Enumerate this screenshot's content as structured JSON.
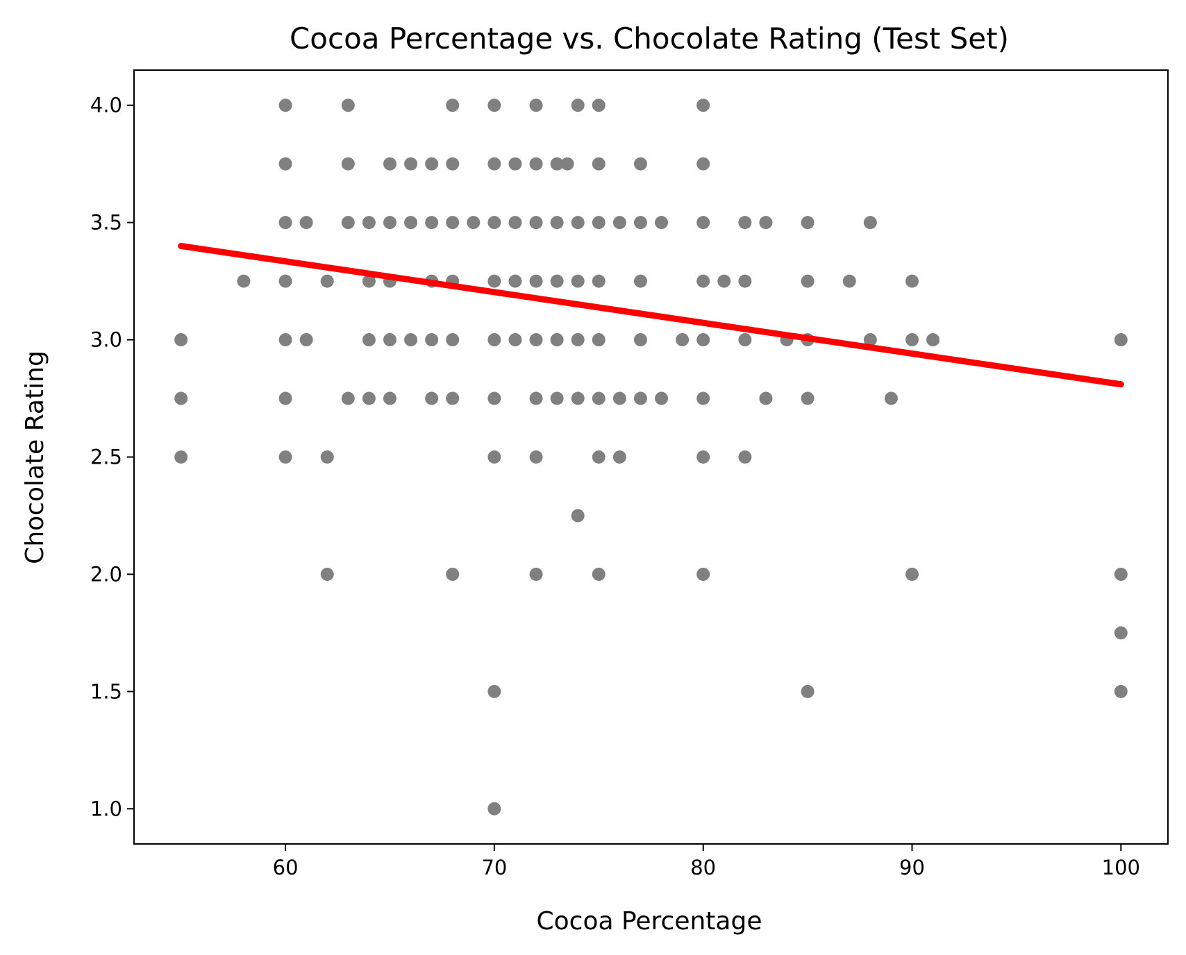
{
  "chart_data": {
    "type": "scatter",
    "title": "Cocoa Percentage vs. Chocolate Rating (Test Set)",
    "xlabel": "Cocoa Percentage",
    "ylabel": "Chocolate Rating",
    "xlim": [
      52.75,
      102.25
    ],
    "ylim": [
      0.85,
      4.15
    ],
    "xticks": [
      60,
      70,
      80,
      90,
      100
    ],
    "xtick_labels": [
      "60",
      "70",
      "80",
      "90",
      "100"
    ],
    "yticks": [
      1.0,
      1.5,
      2.0,
      2.5,
      3.0,
      3.5,
      4.0
    ],
    "ytick_labels": [
      "1.0",
      "1.5",
      "2.0",
      "2.5",
      "3.0",
      "3.5",
      "4.0"
    ],
    "grid": false,
    "legend": "none",
    "colors": {
      "points": "#808080",
      "line": "#ff0000"
    },
    "series": [
      {
        "type": "scatter",
        "points": [
          [
            55,
            3.0
          ],
          [
            55,
            2.75
          ],
          [
            55,
            2.5
          ],
          [
            58,
            3.25
          ],
          [
            60,
            4.0
          ],
          [
            60,
            3.75
          ],
          [
            60,
            3.5
          ],
          [
            60,
            3.25
          ],
          [
            60,
            3.0
          ],
          [
            60,
            2.75
          ],
          [
            60,
            2.5
          ],
          [
            61,
            3.5
          ],
          [
            61,
            3.0
          ],
          [
            62,
            3.25
          ],
          [
            62,
            2.5
          ],
          [
            62,
            2.0
          ],
          [
            63,
            4.0
          ],
          [
            63,
            3.75
          ],
          [
            63,
            3.5
          ],
          [
            63,
            2.75
          ],
          [
            64,
            3.5
          ],
          [
            64,
            3.25
          ],
          [
            64,
            3.0
          ],
          [
            64,
            2.75
          ],
          [
            65,
            3.75
          ],
          [
            65,
            3.5
          ],
          [
            65,
            3.25
          ],
          [
            65,
            3.0
          ],
          [
            65,
            2.75
          ],
          [
            66,
            3.75
          ],
          [
            66,
            3.5
          ],
          [
            66,
            3.0
          ],
          [
            67,
            3.75
          ],
          [
            67,
            3.5
          ],
          [
            67,
            3.25
          ],
          [
            67,
            3.0
          ],
          [
            67,
            2.75
          ],
          [
            68,
            4.0
          ],
          [
            68,
            3.75
          ],
          [
            68,
            3.5
          ],
          [
            68,
            3.25
          ],
          [
            68,
            3.0
          ],
          [
            68,
            2.75
          ],
          [
            68,
            2.0
          ],
          [
            69,
            3.5
          ],
          [
            70,
            4.0
          ],
          [
            70,
            3.75
          ],
          [
            70,
            3.5
          ],
          [
            70,
            3.25
          ],
          [
            70,
            3.0
          ],
          [
            70,
            2.75
          ],
          [
            70,
            2.5
          ],
          [
            70,
            1.5
          ],
          [
            70,
            1.0
          ],
          [
            71,
            3.75
          ],
          [
            71,
            3.5
          ],
          [
            71,
            3.25
          ],
          [
            71,
            3.0
          ],
          [
            72,
            4.0
          ],
          [
            72,
            3.75
          ],
          [
            72,
            3.5
          ],
          [
            72,
            3.25
          ],
          [
            72,
            3.0
          ],
          [
            72,
            2.75
          ],
          [
            72,
            2.5
          ],
          [
            72,
            2.0
          ],
          [
            73,
            3.75
          ],
          [
            73,
            3.5
          ],
          [
            73,
            3.25
          ],
          [
            73,
            3.0
          ],
          [
            73,
            2.75
          ],
          [
            73.5,
            3.75
          ],
          [
            74,
            4.0
          ],
          [
            74,
            3.5
          ],
          [
            74,
            3.25
          ],
          [
            74,
            3.0
          ],
          [
            74,
            2.75
          ],
          [
            74,
            2.25
          ],
          [
            75,
            4.0
          ],
          [
            75,
            3.75
          ],
          [
            75,
            3.5
          ],
          [
            75,
            3.25
          ],
          [
            75,
            3.0
          ],
          [
            75,
            2.75
          ],
          [
            75,
            2.5
          ],
          [
            75,
            2.0
          ],
          [
            76,
            3.5
          ],
          [
            76,
            2.75
          ],
          [
            76,
            2.5
          ],
          [
            77,
            3.75
          ],
          [
            77,
            3.5
          ],
          [
            77,
            3.25
          ],
          [
            77,
            3.0
          ],
          [
            77,
            2.75
          ],
          [
            78,
            3.5
          ],
          [
            78,
            2.75
          ],
          [
            79,
            3.0
          ],
          [
            80,
            4.0
          ],
          [
            80,
            3.75
          ],
          [
            80,
            3.5
          ],
          [
            80,
            3.25
          ],
          [
            80,
            3.0
          ],
          [
            80,
            2.75
          ],
          [
            80,
            2.5
          ],
          [
            80,
            2.0
          ],
          [
            81,
            3.25
          ],
          [
            82,
            3.5
          ],
          [
            82,
            3.25
          ],
          [
            82,
            3.0
          ],
          [
            82,
            2.5
          ],
          [
            83,
            3.5
          ],
          [
            83,
            2.75
          ],
          [
            84,
            3.0
          ],
          [
            85,
            3.5
          ],
          [
            85,
            3.25
          ],
          [
            85,
            3.0
          ],
          [
            85,
            2.75
          ],
          [
            85,
            1.5
          ],
          [
            87,
            3.25
          ],
          [
            88,
            3.5
          ],
          [
            88,
            3.0
          ],
          [
            89,
            2.75
          ],
          [
            90,
            3.25
          ],
          [
            90,
            3.0
          ],
          [
            90,
            2.0
          ],
          [
            91,
            3.0
          ],
          [
            100,
            3.0
          ],
          [
            100,
            2.0
          ],
          [
            100,
            1.75
          ],
          [
            100,
            1.5
          ]
        ]
      },
      {
        "type": "line",
        "points": [
          [
            55,
            3.4
          ],
          [
            100,
            2.81
          ]
        ]
      }
    ]
  }
}
